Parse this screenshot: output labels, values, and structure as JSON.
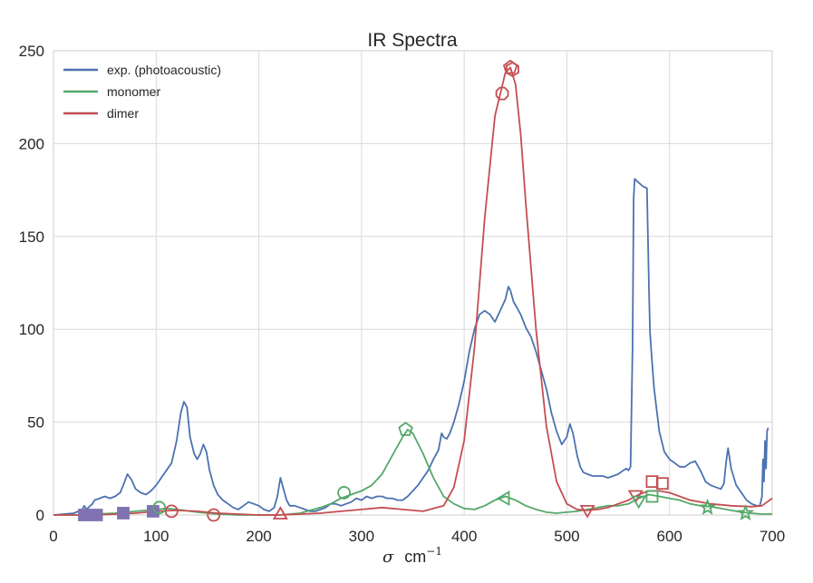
{
  "chart_data": {
    "type": "line",
    "title": "IR Spectra",
    "xlabel_symbol": "σ",
    "xlabel_unit": "cm",
    "xlabel_exp": "−1",
    "ylabel": "",
    "xlim": [
      0,
      700
    ],
    "ylim": [
      0,
      250
    ],
    "xticks": [
      0,
      100,
      200,
      300,
      400,
      500,
      600,
      700
    ],
    "yticks": [
      0,
      50,
      100,
      150,
      200,
      250
    ],
    "grid": true,
    "legend_position": "upper-left",
    "series": [
      {
        "name": "exp. (photoacoustic)",
        "color": "#4c72b0",
        "x": [
          0,
          10,
          20,
          28,
          30,
          32,
          34,
          38,
          40,
          45,
          50,
          55,
          60,
          65,
          68,
          72,
          76,
          80,
          85,
          90,
          95,
          100,
          105,
          110,
          115,
          120,
          124,
          127,
          130,
          133,
          137,
          140,
          143,
          146,
          149,
          152,
          156,
          160,
          165,
          170,
          175,
          180,
          185,
          190,
          195,
          200,
          205,
          210,
          215,
          218,
          221,
          224,
          227,
          230,
          235,
          240,
          245,
          250,
          255,
          260,
          265,
          270,
          275,
          280,
          285,
          290,
          295,
          300,
          305,
          310,
          315,
          320,
          325,
          330,
          335,
          340,
          345,
          350,
          355,
          360,
          365,
          370,
          375,
          378,
          380,
          383,
          386,
          390,
          395,
          400,
          405,
          410,
          415,
          420,
          425,
          430,
          435,
          440,
          443,
          445,
          448,
          451,
          455,
          460,
          465,
          470,
          475,
          480,
          485,
          490,
          495,
          500,
          503,
          506,
          508,
          510,
          513,
          516,
          520,
          525,
          530,
          535,
          540,
          545,
          550,
          555,
          558,
          560,
          562,
          564,
          565,
          566,
          570,
          574,
          578,
          580,
          581,
          583,
          585,
          590,
          595,
          600,
          605,
          610,
          615,
          620,
          625,
          630,
          635,
          640,
          645,
          650,
          653,
          655,
          657,
          660,
          665,
          670,
          675,
          680,
          685,
          688,
          690,
          691,
          692,
          693,
          694,
          695,
          696
        ],
        "y": [
          0,
          0.5,
          1,
          3,
          5,
          3,
          4,
          6,
          8,
          9,
          10,
          9,
          10,
          12,
          16,
          22,
          19,
          14,
          12,
          11,
          13,
          16,
          20,
          24,
          28,
          40,
          55,
          61,
          58,
          42,
          33,
          30,
          33,
          38,
          34,
          24,
          16,
          11,
          8,
          6,
          4,
          3,
          5,
          7,
          6,
          5,
          3,
          2,
          4,
          10,
          20,
          14,
          8,
          5,
          5,
          4,
          3,
          2,
          2,
          3,
          4,
          6,
          6,
          5,
          6,
          7,
          9,
          8,
          10,
          9,
          10,
          10,
          9,
          9,
          8,
          8,
          10,
          13,
          16,
          20,
          24,
          30,
          35,
          44,
          42,
          41,
          44,
          50,
          60,
          72,
          88,
          100,
          108,
          110,
          108,
          104,
          110,
          116,
          123,
          121,
          115,
          112,
          108,
          101,
          96,
          88,
          78,
          68,
          55,
          45,
          38,
          42,
          49,
          44,
          38,
          32,
          26,
          23,
          22,
          21,
          21,
          21,
          20,
          21,
          22,
          24,
          25,
          24,
          26,
          90,
          170,
          181,
          179,
          177,
          176,
          120,
          98,
          82,
          68,
          45,
          34,
          30,
          28,
          26,
          26,
          28,
          29,
          24,
          18,
          16,
          15,
          14,
          17,
          28,
          36,
          25,
          16,
          12,
          8,
          6,
          5,
          5,
          10,
          30,
          18,
          40,
          25,
          45,
          47
        ]
      },
      {
        "name": "monomer",
        "color": "#55a868",
        "x": [
          0,
          20,
          40,
          60,
          80,
          100,
          110,
          120,
          140,
          160,
          180,
          200,
          220,
          240,
          260,
          270,
          280,
          290,
          300,
          310,
          320,
          330,
          340,
          345,
          350,
          360,
          370,
          380,
          390,
          400,
          410,
          420,
          430,
          440,
          450,
          460,
          470,
          480,
          490,
          500,
          510,
          520,
          530,
          540,
          550,
          560,
          570,
          580,
          590,
          600,
          610,
          620,
          630,
          640,
          650,
          660,
          670,
          680,
          690,
          700
        ],
        "y": [
          0,
          0,
          0.5,
          1,
          2,
          3,
          3.5,
          3,
          1.5,
          0.5,
          0,
          0,
          0,
          1,
          4,
          6,
          9,
          11,
          13,
          16,
          22,
          32,
          42,
          46,
          44,
          33,
          20,
          10,
          6,
          3.5,
          3,
          5,
          8,
          10,
          8,
          5,
          3,
          1.5,
          1,
          1.5,
          2,
          3,
          4,
          5,
          5,
          6,
          9,
          11,
          10,
          9,
          8,
          6,
          5,
          4.5,
          3.5,
          2.5,
          1.5,
          1,
          0.5,
          0.5
        ]
      },
      {
        "name": "dimer",
        "color": "#c44e52",
        "x": [
          0,
          20,
          40,
          60,
          80,
          100,
          120,
          140,
          160,
          180,
          200,
          220,
          240,
          260,
          280,
          300,
          320,
          340,
          360,
          380,
          390,
          400,
          410,
          420,
          430,
          440,
          445,
          450,
          455,
          460,
          470,
          480,
          490,
          500,
          510,
          520,
          530,
          540,
          550,
          560,
          570,
          580,
          590,
          600,
          610,
          620,
          640,
          660,
          680,
          690,
          695,
          700
        ],
        "y": [
          0,
          0,
          0,
          0.5,
          1,
          2,
          2.5,
          2,
          1,
          0.5,
          0,
          0,
          0.5,
          1,
          2,
          3,
          4,
          3,
          2,
          5,
          15,
          40,
          90,
          160,
          215,
          238,
          241,
          232,
          205,
          168,
          100,
          48,
          18,
          6,
          3,
          2.5,
          3,
          4,
          6,
          8,
          11,
          13,
          13,
          12,
          10,
          8,
          6,
          5,
          4.5,
          5,
          7,
          9
        ]
      }
    ],
    "markers": [
      {
        "shape": "square-filled",
        "color": "#8172b2",
        "points": [
          [
            30,
            0
          ],
          [
            42,
            0
          ],
          [
            68,
            1
          ],
          [
            97,
            2
          ]
        ]
      },
      {
        "shape": "circle",
        "color": "#c44e52",
        "points": [
          [
            115,
            2
          ],
          [
            156,
            0
          ]
        ]
      },
      {
        "shape": "triangle-up",
        "color": "#c44e52",
        "points": [
          [
            221,
            0
          ]
        ]
      },
      {
        "shape": "triangle-down",
        "color": "#c44e52",
        "points": [
          [
            520,
            3
          ],
          [
            567,
            11
          ]
        ]
      },
      {
        "shape": "octagon",
        "color": "#c44e52",
        "points": [
          [
            437,
            227
          ]
        ]
      },
      {
        "shape": "hexagon",
        "color": "#c44e52",
        "points": [
          [
            447,
            240
          ]
        ]
      },
      {
        "shape": "pentagon",
        "color": "#c44e52",
        "points": [
          [
            445,
            241
          ]
        ]
      },
      {
        "shape": "square",
        "color": "#c44e52",
        "points": [
          [
            583,
            18
          ],
          [
            593,
            17
          ]
        ]
      },
      {
        "shape": "circle",
        "color": "#55a868",
        "points": [
          [
            103,
            4
          ],
          [
            283,
            12
          ]
        ]
      },
      {
        "shape": "pentagon",
        "color": "#55a868",
        "points": [
          [
            343,
            46
          ]
        ]
      },
      {
        "shape": "triangle-left",
        "color": "#55a868",
        "points": [
          [
            440,
            9
          ]
        ]
      },
      {
        "shape": "square",
        "color": "#55a868",
        "points": [
          [
            583,
            10
          ]
        ]
      },
      {
        "shape": "triangle-down",
        "color": "#55a868",
        "points": [
          [
            570,
            8
          ]
        ]
      },
      {
        "shape": "star",
        "color": "#55a868",
        "points": [
          [
            637,
            4
          ],
          [
            674,
            1
          ]
        ]
      }
    ]
  }
}
